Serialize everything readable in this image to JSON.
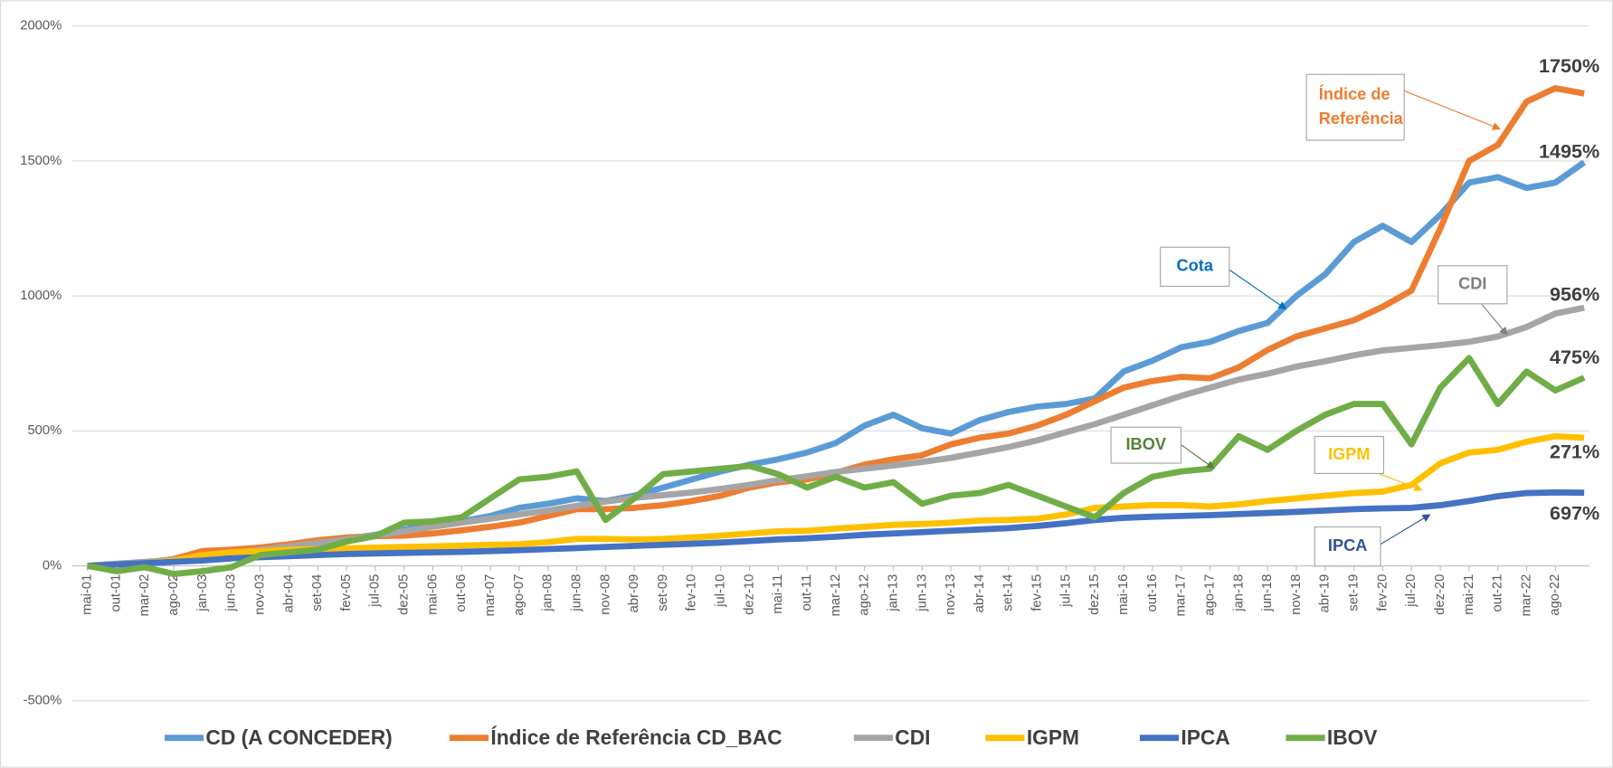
{
  "chart_data": {
    "type": "line",
    "categories": [
      "mai-01",
      "out-01",
      "mar-02",
      "ago-02",
      "jan-03",
      "jun-03",
      "nov-03",
      "abr-04",
      "set-04",
      "fev-05",
      "jul-05",
      "dez-05",
      "mai-06",
      "out-06",
      "mar-07",
      "ago-07",
      "jan-08",
      "jun-08",
      "nov-08",
      "abr-09",
      "set-09",
      "fev-10",
      "jul-10",
      "dez-10",
      "mai-11",
      "out-11",
      "mar-12",
      "ago-12",
      "jan-13",
      "jun-13",
      "nov-13",
      "abr-14",
      "set-14",
      "fev-15",
      "jul-15",
      "dez-15",
      "mai-16",
      "out-16",
      "mar-17",
      "ago-17",
      "jan-18",
      "jun-18",
      "nov-18",
      "abr-19",
      "set-19",
      "fev-20",
      "jul-20",
      "dez-20",
      "mai-21",
      "out-21",
      "mar-22",
      "ago-22",
      null
    ],
    "ylim": [
      -500,
      2000
    ],
    "yticks": [
      {
        "value": -500,
        "label": "-500%"
      },
      {
        "value": 0,
        "label": "0%"
      },
      {
        "value": 500,
        "label": "500%"
      },
      {
        "value": 1000,
        "label": "1000%"
      },
      {
        "value": 1500,
        "label": "1500%"
      },
      {
        "value": 2000,
        "label": "2000%"
      }
    ],
    "grid": true,
    "legend": "bottom",
    "series": [
      {
        "name": "CD (A CONCEDER)",
        "color": "#5b9bd5",
        "values": [
          0,
          5,
          12,
          20,
          30,
          40,
          55,
          70,
          85,
          100,
          115,
          135,
          150,
          165,
          185,
          215,
          230,
          250,
          240,
          260,
          290,
          320,
          350,
          375,
          395,
          420,
          455,
          520,
          560,
          510,
          490,
          540,
          570,
          590,
          600,
          620,
          720,
          760,
          810,
          830,
          870,
          900,
          1000,
          1080,
          1200,
          1260,
          1200,
          1300,
          1420,
          1440,
          1400,
          1420,
          1495
        ],
        "value_labels": [
          null,
          null,
          null,
          null,
          null,
          null,
          null,
          null,
          null,
          null,
          null,
          null,
          null,
          null,
          null,
          null,
          null,
          null,
          null,
          null,
          null,
          null,
          null,
          null,
          null,
          null,
          null,
          null,
          null,
          null,
          null,
          null,
          null,
          null,
          null,
          null,
          null,
          null,
          null,
          null,
          null,
          null,
          null,
          null,
          null,
          null,
          null,
          null,
          null,
          null,
          null,
          null,
          "1495%"
        ]
      },
      {
        "name": "Índice de Referência CD_BAC",
        "color": "#ed7d31",
        "values": [
          0,
          5,
          12,
          25,
          55,
          60,
          68,
          80,
          95,
          105,
          110,
          112,
          120,
          132,
          145,
          160,
          185,
          210,
          210,
          215,
          225,
          240,
          260,
          290,
          310,
          320,
          345,
          375,
          395,
          410,
          450,
          475,
          490,
          520,
          560,
          610,
          660,
          685,
          700,
          695,
          735,
          800,
          850,
          880,
          910,
          960,
          1020,
          1250,
          1500,
          1560,
          1720,
          1770,
          1750
        ],
        "value_labels": [
          null,
          null,
          null,
          null,
          null,
          null,
          null,
          null,
          null,
          null,
          null,
          null,
          null,
          null,
          null,
          null,
          null,
          null,
          null,
          null,
          null,
          null,
          null,
          null,
          null,
          null,
          null,
          null,
          null,
          null,
          null,
          null,
          null,
          null,
          null,
          null,
          null,
          null,
          null,
          null,
          null,
          null,
          null,
          null,
          null,
          null,
          null,
          null,
          null,
          null,
          null,
          null,
          "1750%"
        ]
      },
      {
        "name": "CDI",
        "color": "#a5a5a5",
        "values": [
          0,
          8,
          15,
          22,
          35,
          48,
          60,
          72,
          85,
          98,
          112,
          128,
          145,
          160,
          175,
          190,
          205,
          222,
          238,
          252,
          262,
          272,
          285,
          300,
          318,
          332,
          348,
          360,
          372,
          385,
          400,
          420,
          440,
          465,
          495,
          525,
          560,
          595,
          630,
          660,
          690,
          712,
          738,
          758,
          780,
          798,
          808,
          818,
          830,
          850,
          885,
          935,
          956
        ],
        "value_labels": [
          null,
          null,
          null,
          null,
          null,
          null,
          null,
          null,
          null,
          null,
          null,
          null,
          null,
          null,
          null,
          null,
          null,
          null,
          null,
          null,
          null,
          null,
          null,
          null,
          null,
          null,
          null,
          null,
          null,
          null,
          null,
          null,
          null,
          null,
          null,
          null,
          null,
          null,
          null,
          null,
          null,
          null,
          null,
          null,
          null,
          null,
          null,
          null,
          null,
          null,
          null,
          null,
          "956%"
        ]
      },
      {
        "name": "IGPM",
        "color": "#ffc000",
        "values": [
          0,
          5,
          10,
          20,
          40,
          50,
          55,
          60,
          62,
          65,
          68,
          70,
          72,
          75,
          78,
          80,
          88,
          100,
          100,
          98,
          100,
          105,
          112,
          120,
          128,
          130,
          138,
          145,
          152,
          155,
          160,
          168,
          170,
          175,
          190,
          215,
          220,
          225,
          225,
          220,
          228,
          240,
          250,
          260,
          270,
          275,
          300,
          380,
          420,
          430,
          460,
          480,
          475
        ],
        "value_labels": [
          null,
          null,
          null,
          null,
          null,
          null,
          null,
          null,
          null,
          null,
          null,
          null,
          null,
          null,
          null,
          null,
          null,
          null,
          null,
          null,
          null,
          null,
          null,
          null,
          null,
          null,
          null,
          null,
          null,
          null,
          null,
          null,
          null,
          null,
          null,
          null,
          null,
          null,
          null,
          null,
          null,
          null,
          null,
          null,
          null,
          null,
          null,
          null,
          null,
          null,
          null,
          null,
          "475%"
        ]
      },
      {
        "name": "IPCA",
        "color": "#4472c4",
        "values": [
          0,
          5,
          10,
          15,
          20,
          28,
          32,
          36,
          40,
          44,
          46,
          48,
          50,
          52,
          55,
          58,
          62,
          66,
          70,
          74,
          78,
          82,
          86,
          92,
          98,
          102,
          108,
          115,
          120,
          125,
          130,
          135,
          140,
          148,
          158,
          170,
          178,
          182,
          185,
          188,
          192,
          196,
          200,
          205,
          210,
          213,
          215,
          225,
          240,
          258,
          270,
          272,
          271
        ],
        "value_labels": [
          null,
          null,
          null,
          null,
          null,
          null,
          null,
          null,
          null,
          null,
          null,
          null,
          null,
          null,
          null,
          null,
          null,
          null,
          null,
          null,
          null,
          null,
          null,
          null,
          null,
          null,
          null,
          null,
          null,
          null,
          null,
          null,
          null,
          null,
          null,
          null,
          null,
          null,
          null,
          null,
          null,
          null,
          null,
          null,
          null,
          null,
          null,
          null,
          null,
          null,
          null,
          null,
          "271%"
        ]
      },
      {
        "name": "IBOV",
        "color": "#70ad47",
        "values": [
          0,
          -20,
          -5,
          -30,
          -20,
          -5,
          40,
          50,
          60,
          90,
          110,
          160,
          165,
          180,
          250,
          320,
          330,
          350,
          170,
          250,
          340,
          350,
          360,
          370,
          340,
          290,
          330,
          290,
          310,
          230,
          260,
          270,
          300,
          260,
          220,
          180,
          270,
          330,
          350,
          360,
          480,
          430,
          500,
          560,
          600,
          600,
          450,
          660,
          770,
          600,
          720,
          650,
          697
        ],
        "value_labels": [
          null,
          null,
          null,
          null,
          null,
          null,
          null,
          null,
          null,
          null,
          null,
          null,
          null,
          null,
          null,
          null,
          null,
          null,
          null,
          null,
          null,
          null,
          null,
          null,
          null,
          null,
          null,
          null,
          null,
          null,
          null,
          null,
          null,
          null,
          null,
          null,
          null,
          null,
          null,
          null,
          null,
          null,
          null,
          null,
          null,
          null,
          null,
          null,
          null,
          null,
          null,
          null,
          "697%"
        ]
      }
    ],
    "annotations": [
      {
        "lines": [
          "Índice de",
          "Referência"
        ],
        "color": "#ed7d31"
      },
      {
        "lines": [
          "Cota"
        ],
        "color": "#0070c0"
      },
      {
        "lines": [
          "CDI"
        ],
        "color": "#7f7f7f"
      },
      {
        "lines": [
          "IBOV"
        ],
        "color": "#548235"
      },
      {
        "lines": [
          "IGPM"
        ],
        "color": "#ffc000"
      },
      {
        "lines": [
          "IPCA"
        ],
        "color": "#2f5597"
      }
    ]
  }
}
